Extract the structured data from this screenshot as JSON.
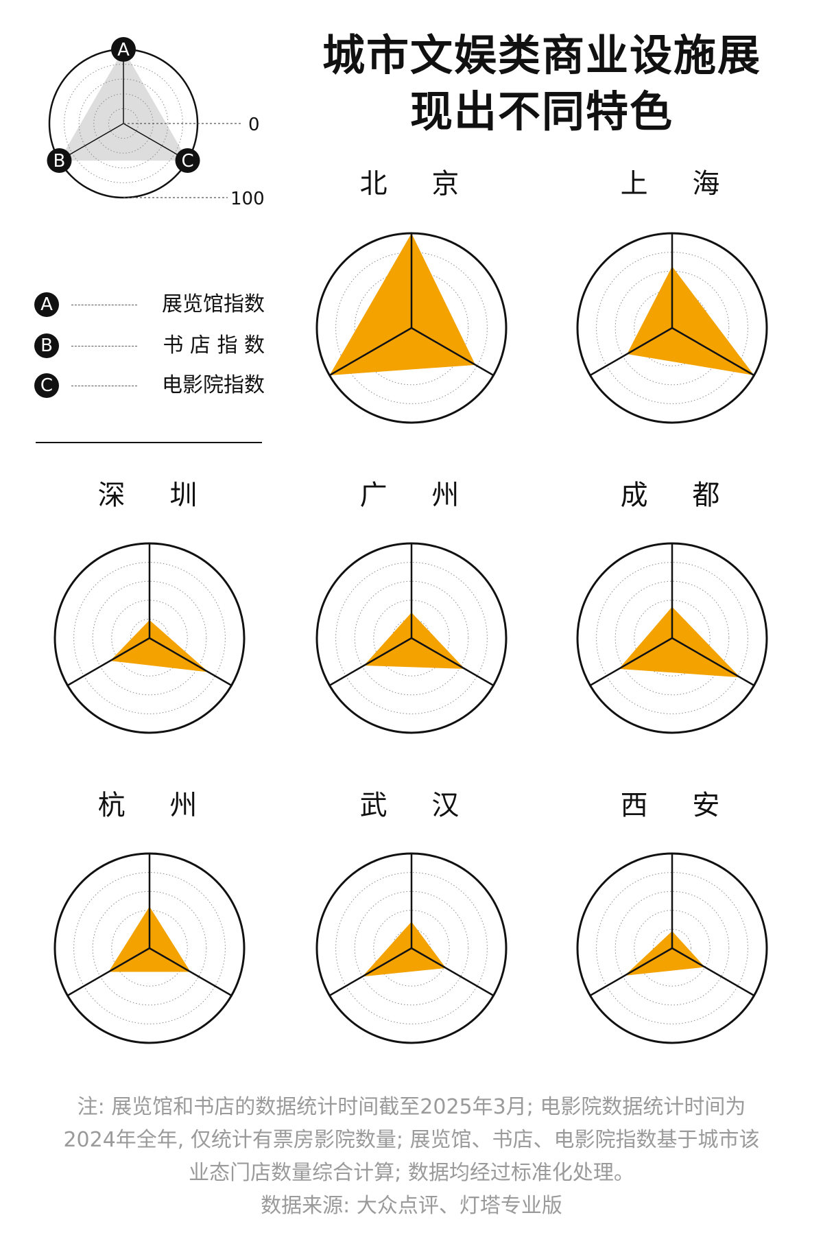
{
  "title": {
    "line1": "城市文娱类商业设施展",
    "line2": "现出不同特色"
  },
  "legend": {
    "scale_min_label": "0",
    "scale_max_label": "100",
    "items": [
      {
        "key": "A",
        "label": "展览馆指数"
      },
      {
        "key": "B",
        "label": "书 店 指 数"
      },
      {
        "key": "C",
        "label": "电影院指数"
      }
    ]
  },
  "colors": {
    "fill": "#F3A200",
    "key_fill": "#dddddd",
    "ink": "#111111",
    "grid": "#888888",
    "note": "#9a9a9a"
  },
  "chart_data": {
    "type": "radar",
    "axes": [
      "展览馆指数",
      "书店指数",
      "电影院指数"
    ],
    "range": [
      0,
      100
    ],
    "rings": 5,
    "cities": [
      {
        "name": "北 京",
        "values": [
          100,
          100,
          78
        ]
      },
      {
        "name": "上 海",
        "values": [
          65,
          55,
          100
        ]
      },
      {
        "name": "深 圳",
        "values": [
          19,
          48,
          72
        ]
      },
      {
        "name": "广 州",
        "values": [
          27,
          58,
          65
        ]
      },
      {
        "name": "成 都",
        "values": [
          33,
          65,
          83
        ]
      },
      {
        "name": "杭 州",
        "values": [
          44,
          50,
          50
        ]
      },
      {
        "name": "武 汉",
        "values": [
          28,
          60,
          42
        ]
      },
      {
        "name": "西 安",
        "values": [
          18,
          58,
          40
        ]
      }
    ]
  },
  "note": {
    "line1": "注: 展览馆和书店的数据统计时间截至2025年3月; 电影院数据统计时间为",
    "line2": "2024年全年, 仅统计有票房影院数量; 展览馆、书店、电影院指数基于城市该",
    "line3": "业态门店数量综合计算; 数据均经过标准化处理。",
    "source": "数据来源: 大众点评、灯塔专业版"
  }
}
